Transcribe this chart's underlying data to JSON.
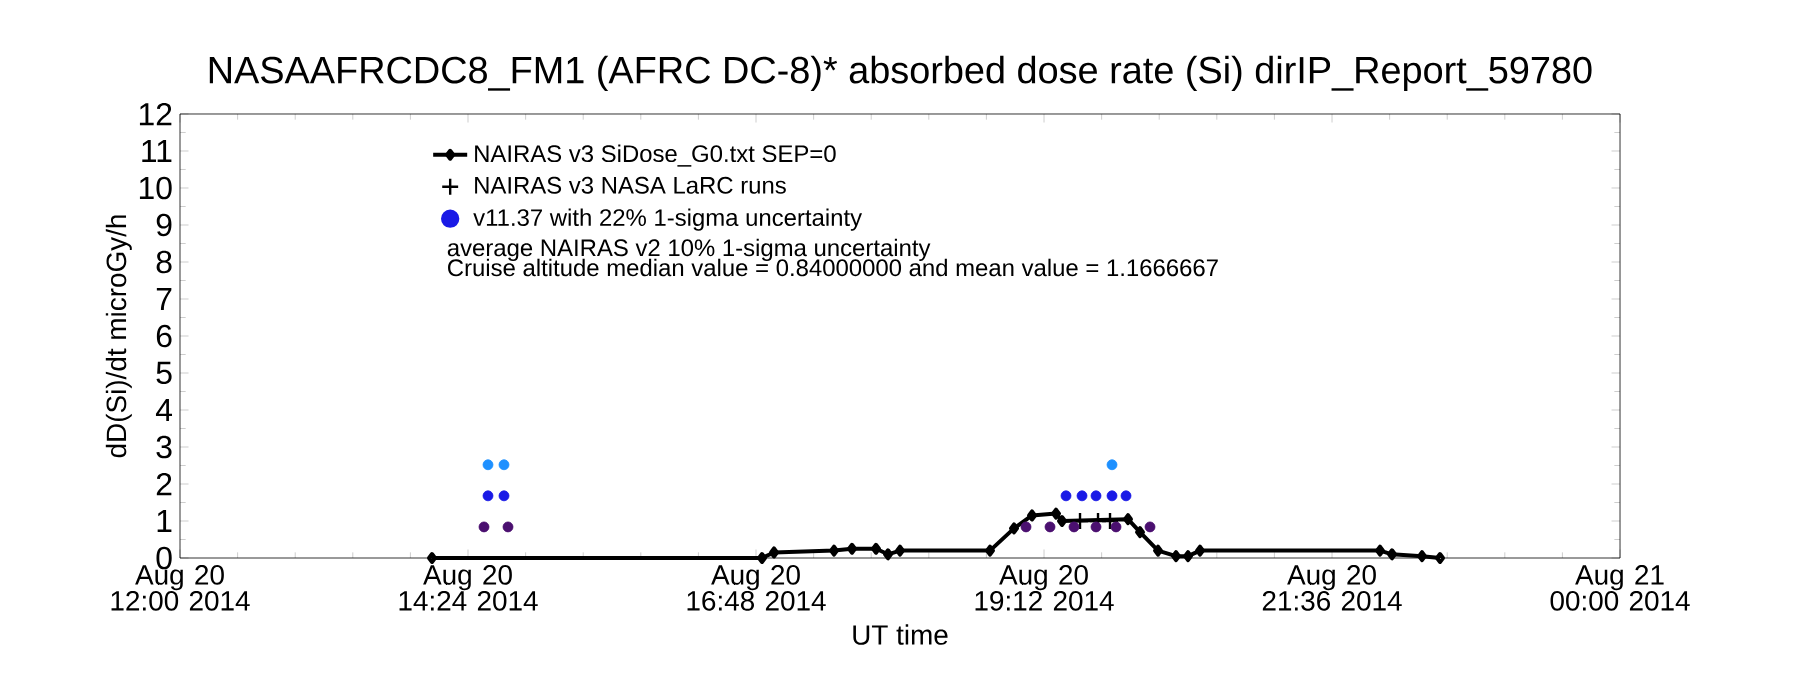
{
  "chart_data": {
    "type": "scatter",
    "title": "NASAAFRCDC8_FM1 (AFRC DC-8)* absorbed dose rate (Si) dirIP_Report_59780",
    "xlabel": "UT time",
    "ylabel": "dD(Si)/dt microGy/h",
    "xlim": [
      "2014-08-20T12:00",
      "2014-08-21T00:00"
    ],
    "xticks": [
      {
        "value": "2014-08-20T12:00",
        "label": "Aug 20 12:00 2014"
      },
      {
        "value": "2014-08-20T14:24",
        "label": "Aug 20 14:24 2014"
      },
      {
        "value": "2014-08-20T16:48",
        "label": "Aug 20 16:48 2014"
      },
      {
        "value": "2014-08-20T19:12",
        "label": "Aug 20 19:12 2014"
      },
      {
        "value": "2014-08-20T21:36",
        "label": "Aug 20 21:36 2014"
      },
      {
        "value": "2014-08-21T00:00",
        "label": "Aug 21 00:00 2014"
      }
    ],
    "ylim": [
      0,
      12
    ],
    "yticks": [
      0,
      1,
      2,
      3,
      4,
      5,
      6,
      7,
      8,
      9,
      10,
      11,
      12
    ],
    "legend": "top left",
    "series": [
      {
        "name": "NAIRAS v3 SiDose_G0.txt SEP=0",
        "type": "line",
        "marker": "diamond",
        "color": "#000000",
        "x": [
          "2014-08-20T14:06",
          "2014-08-20T16:51",
          "2014-08-20T16:57",
          "2014-08-20T17:27",
          "2014-08-20T17:36",
          "2014-08-20T17:48",
          "2014-08-20T17:54",
          "2014-08-20T18:00",
          "2014-08-20T18:45",
          "2014-08-20T18:57",
          "2014-08-20T19:06",
          "2014-08-20T19:18",
          "2014-08-20T19:21",
          "2014-08-20T19:54",
          "2014-08-20T20:00",
          "2014-08-20T20:09",
          "2014-08-20T20:18",
          "2014-08-20T20:24",
          "2014-08-20T20:30",
          "2014-08-20T22:00",
          "2014-08-20T22:06",
          "2014-08-20T22:21",
          "2014-08-20T22:30"
        ],
        "values": [
          0,
          0,
          0.15,
          0.2,
          0.25,
          0.25,
          0.1,
          0.2,
          0.2,
          0.8,
          1.15,
          1.2,
          1.0,
          1.05,
          0.7,
          0.2,
          0.05,
          0.05,
          0.2,
          0.2,
          0.1,
          0.05,
          0
        ]
      },
      {
        "name": "NAIRAS v3 NASA LaRC runs",
        "marker": "cross",
        "color": "#000000",
        "x": [
          "2014-08-20T19:30",
          "2014-08-20T19:39",
          "2014-08-20T19:45"
        ],
        "values": [
          1.0,
          1.0,
          1.0
        ]
      },
      {
        "name": "v11.37 with 22% 1-sigma uncertainty",
        "type": "scatter",
        "marker": "circle",
        "color": "#1a1ae6",
        "x": [
          "2014-08-20T14:32",
          "2014-08-20T14:34",
          "2014-08-20T14:34",
          "2014-08-20T14:42",
          "2014-08-20T14:42",
          "2014-08-20T14:44",
          "2014-08-20T19:03",
          "2014-08-20T19:15",
          "2014-08-20T19:27",
          "2014-08-20T19:38",
          "2014-08-20T19:48",
          "2014-08-20T20:05",
          "2014-08-20T19:23",
          "2014-08-20T19:31",
          "2014-08-20T19:38",
          "2014-08-20T19:46",
          "2014-08-20T19:53",
          "2014-08-20T19:46"
        ],
        "values": [
          0.84,
          1.68,
          2.52,
          2.52,
          1.68,
          0.84,
          0.84,
          0.84,
          0.84,
          0.84,
          0.84,
          0.84,
          1.68,
          1.68,
          1.68,
          1.68,
          1.68,
          2.52
        ],
        "colors": [
          "#4b1070",
          "#1a1ae6",
          "#1e90ff",
          "#1e90ff",
          "#1a1ae6",
          "#4b1070",
          "#4b1070",
          "#4b1070",
          "#4b1070",
          "#4b1070",
          "#4b1070",
          "#4b1070",
          "#1a1ae6",
          "#1a1ae6",
          "#1a1ae6",
          "#1a1ae6",
          "#1a1ae6",
          "#1e90ff"
        ]
      }
    ],
    "annotations": [
      "average NAIRAS v2 10% 1-sigma uncertainty",
      "Cruise altitude median value = 0.84000000 and mean value = 1.1666667"
    ]
  }
}
